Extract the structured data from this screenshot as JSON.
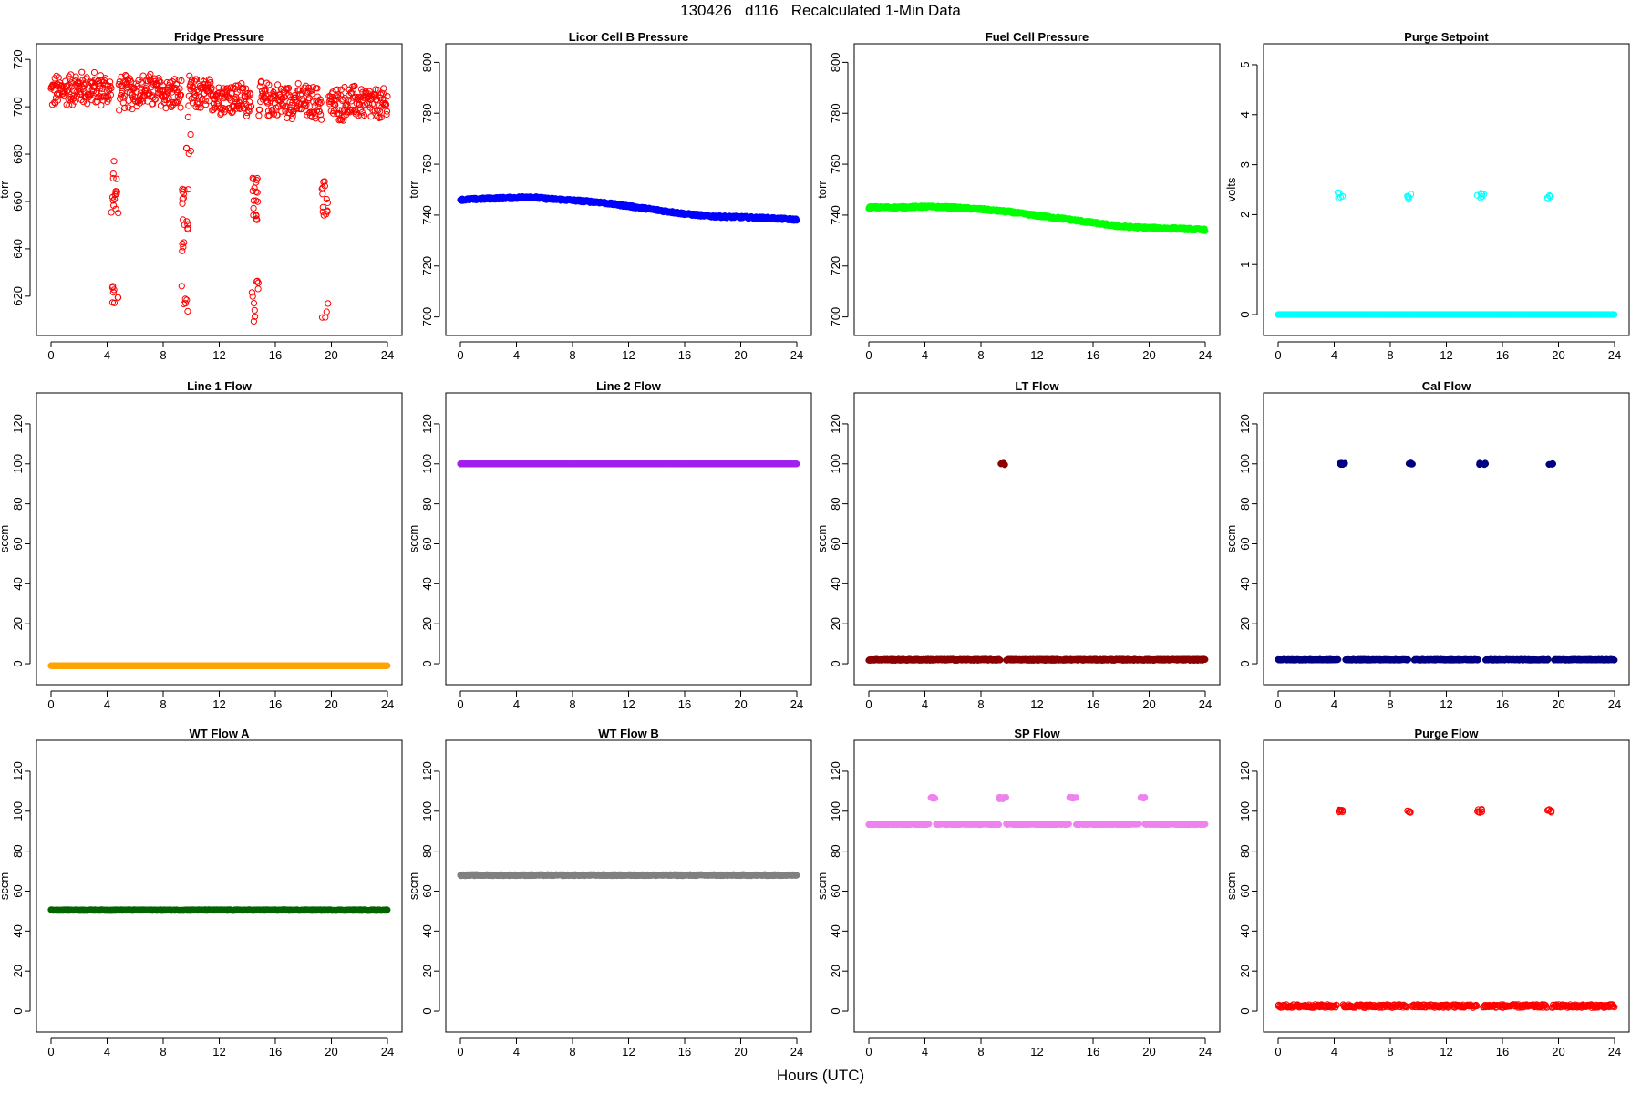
{
  "page": {
    "title": "130426   d116   Recalculated 1-Min Data",
    "xlabel": "Hours (UTC)"
  },
  "x_axis": {
    "range": [
      0,
      24
    ],
    "ticks": [
      0,
      4,
      8,
      12,
      16,
      20,
      24
    ]
  },
  "chart_data": [
    {
      "type": "scatter",
      "title": "Fridge Pressure",
      "ylabel": "torr",
      "ylim": [
        608,
        722
      ],
      "yticks": [
        620,
        640,
        660,
        680,
        700,
        720
      ],
      "marker": "open-circle",
      "color": "#ff0000",
      "base": [
        [
          0,
          706
        ],
        [
          2,
          708
        ],
        [
          4,
          707
        ],
        [
          5,
          706
        ],
        [
          7,
          707
        ],
        [
          9,
          705
        ],
        [
          11,
          705
        ],
        [
          14,
          703
        ],
        [
          16,
          703
        ],
        [
          18,
          702
        ],
        [
          20,
          701
        ],
        [
          22,
          702
        ],
        [
          24,
          700
        ]
      ],
      "noise": 7,
      "gaps": [
        [
          4.3,
          4.8
        ],
        [
          9.3,
          9.8
        ],
        [
          14.3,
          14.8
        ],
        [
          19.3,
          19.8
        ]
      ],
      "events": [
        {
          "x_start": 4.3,
          "x_end": 4.8,
          "y_min": 655,
          "y_max": 679,
          "count": 16
        },
        {
          "x_start": 4.3,
          "x_end": 4.8,
          "y_min": 616,
          "y_max": 626,
          "count": 8
        },
        {
          "x_start": 9.3,
          "x_end": 9.8,
          "y_min": 639,
          "y_max": 669,
          "count": 18
        },
        {
          "x_start": 9.3,
          "x_end": 9.8,
          "y_min": 613,
          "y_max": 628,
          "count": 6
        },
        {
          "x_start": 9.6,
          "x_end": 10.0,
          "y_min": 680,
          "y_max": 698,
          "count": 6
        },
        {
          "x_start": 14.3,
          "x_end": 14.8,
          "y_min": 652,
          "y_max": 670,
          "count": 18
        },
        {
          "x_start": 14.3,
          "x_end": 14.8,
          "y_min": 609,
          "y_max": 627,
          "count": 10
        },
        {
          "x_start": 19.3,
          "x_end": 19.8,
          "y_min": 654,
          "y_max": 669,
          "count": 14
        },
        {
          "x_start": 19.3,
          "x_end": 19.8,
          "y_min": 611,
          "y_max": 618,
          "count": 4
        }
      ]
    },
    {
      "type": "scatter",
      "title": "Licor Cell B Pressure",
      "ylabel": "torr",
      "ylim": [
        697,
        803
      ],
      "yticks": [
        700,
        720,
        740,
        760,
        780,
        800
      ],
      "marker": "filled-circle",
      "color": "#0000ff",
      "base": [
        [
          0,
          746
        ],
        [
          2,
          746.5
        ],
        [
          4,
          746.8
        ],
        [
          4.8,
          747.2
        ],
        [
          6,
          746.5
        ],
        [
          8,
          745.8
        ],
        [
          10,
          745
        ],
        [
          12,
          743.5
        ],
        [
          14,
          742
        ],
        [
          16,
          740.5
        ],
        [
          18,
          739.5
        ],
        [
          20,
          739.2
        ],
        [
          22,
          738.8
        ],
        [
          24,
          738.2
        ]
      ],
      "noise": 0.4,
      "gaps": [],
      "events": []
    },
    {
      "type": "scatter",
      "title": "Fuel Cell Pressure",
      "ylabel": "torr",
      "ylim": [
        697,
        803
      ],
      "yticks": [
        700,
        720,
        740,
        760,
        780,
        800
      ],
      "marker": "filled-circle",
      "color": "#00ff00",
      "base": [
        [
          0,
          743
        ],
        [
          2,
          743
        ],
        [
          4,
          743.3
        ],
        [
          6,
          743
        ],
        [
          8,
          742.3
        ],
        [
          10,
          741.3
        ],
        [
          12,
          739.8
        ],
        [
          14,
          738.5
        ],
        [
          16,
          737
        ],
        [
          18,
          735.5
        ],
        [
          20,
          735
        ],
        [
          22,
          734.7
        ],
        [
          24,
          734.2
        ]
      ],
      "noise": 0.4,
      "gaps": [],
      "events": []
    },
    {
      "type": "scatter",
      "title": "Purge Setpoint",
      "ylabel": "volts",
      "ylim": [
        -0.2,
        5.2
      ],
      "yticks": [
        0,
        1,
        2,
        3,
        4,
        5
      ],
      "marker": "open-circle",
      "color": "#00ffff",
      "base": [
        [
          0,
          0
        ],
        [
          24,
          0
        ]
      ],
      "noise": 0,
      "gaps": [],
      "baseline_style": "thick",
      "events": [
        {
          "x_start": 4.2,
          "x_end": 4.7,
          "y_min": 2.3,
          "y_max": 2.45,
          "count": 6
        },
        {
          "x_start": 9.2,
          "x_end": 9.5,
          "y_min": 2.3,
          "y_max": 2.42,
          "count": 5
        },
        {
          "x_start": 14.2,
          "x_end": 14.7,
          "y_min": 2.3,
          "y_max": 2.43,
          "count": 6
        },
        {
          "x_start": 19.2,
          "x_end": 19.5,
          "y_min": 2.3,
          "y_max": 2.42,
          "count": 5
        }
      ]
    },
    {
      "type": "scatter",
      "title": "Line 1 Flow",
      "ylabel": "sccm",
      "ylim": [
        -5,
        130
      ],
      "yticks": [
        0,
        20,
        40,
        60,
        80,
        100,
        120
      ],
      "marker": "filled-circle",
      "color": "#ffa500",
      "base": [
        [
          0,
          -1
        ],
        [
          24,
          -1
        ]
      ],
      "noise": 0,
      "gaps": [],
      "baseline_style": "thick",
      "events": []
    },
    {
      "type": "scatter",
      "title": "Line 2 Flow",
      "ylabel": "sccm",
      "ylim": [
        -5,
        130
      ],
      "yticks": [
        0,
        20,
        40,
        60,
        80,
        100,
        120
      ],
      "marker": "filled-circle",
      "color": "#a020f0",
      "base": [
        [
          0,
          100
        ],
        [
          24,
          100
        ]
      ],
      "noise": 0,
      "gaps": [],
      "baseline_style": "thick",
      "events": []
    },
    {
      "type": "scatter",
      "title": "LT Flow",
      "ylabel": "sccm",
      "ylim": [
        -5,
        130
      ],
      "yticks": [
        0,
        20,
        40,
        60,
        80,
        100,
        120
      ],
      "marker": "filled-circle",
      "color": "#8b0000",
      "base": [
        [
          0,
          2
        ],
        [
          24,
          2
        ]
      ],
      "noise": 0.3,
      "gaps": [
        [
          9.4,
          9.8
        ]
      ],
      "baseline_style": "thick",
      "events": [
        {
          "x_start": 9.4,
          "x_end": 9.8,
          "y_min": 99.5,
          "y_max": 100.5,
          "count": 6
        }
      ]
    },
    {
      "type": "scatter",
      "title": "Cal Flow",
      "ylabel": "sccm",
      "ylim": [
        -5,
        130
      ],
      "yticks": [
        0,
        20,
        40,
        60,
        80,
        100,
        120
      ],
      "marker": "filled-circle",
      "color": "#000080",
      "base": [
        [
          0,
          2
        ],
        [
          24,
          2
        ]
      ],
      "noise": 0.2,
      "gaps": [
        [
          4.3,
          4.8
        ],
        [
          9.3,
          9.7
        ],
        [
          14.3,
          14.8
        ],
        [
          19.3,
          19.7
        ]
      ],
      "baseline_style": "thick",
      "events": [
        {
          "x_start": 4.3,
          "x_end": 4.8,
          "y_min": 99.6,
          "y_max": 100.4,
          "count": 8
        },
        {
          "x_start": 9.3,
          "x_end": 9.7,
          "y_min": 99.6,
          "y_max": 100.4,
          "count": 6
        },
        {
          "x_start": 14.3,
          "x_end": 14.8,
          "y_min": 99.6,
          "y_max": 100.4,
          "count": 8
        },
        {
          "x_start": 19.3,
          "x_end": 19.7,
          "y_min": 99.6,
          "y_max": 100.4,
          "count": 6
        }
      ]
    },
    {
      "type": "scatter",
      "title": "WT Flow A",
      "ylabel": "sccm",
      "ylim": [
        -5,
        130
      ],
      "yticks": [
        0,
        20,
        40,
        60,
        80,
        100,
        120
      ],
      "marker": "filled-circle",
      "color": "#006400",
      "base": [
        [
          0,
          50.5
        ],
        [
          24,
          50.5
        ]
      ],
      "noise": 0.2,
      "gaps": [],
      "baseline_style": "thick",
      "events": []
    },
    {
      "type": "scatter",
      "title": "WT Flow B",
      "ylabel": "sccm",
      "ylim": [
        -5,
        130
      ],
      "yticks": [
        0,
        20,
        40,
        60,
        80,
        100,
        120
      ],
      "marker": "filled-circle",
      "color": "#808080",
      "base": [
        [
          0,
          68
        ],
        [
          24,
          68
        ]
      ],
      "noise": 0.3,
      "gaps": [],
      "baseline_style": "thick",
      "events": []
    },
    {
      "type": "scatter",
      "title": "SP Flow",
      "ylabel": "sccm",
      "ylim": [
        -5,
        130
      ],
      "yticks": [
        0,
        20,
        40,
        60,
        80,
        100,
        120
      ],
      "marker": "filled-circle",
      "color": "#ee82ee",
      "base": [
        [
          0,
          93.5
        ],
        [
          24,
          93.5
        ]
      ],
      "noise": 0.2,
      "gaps": [
        [
          4.3,
          4.8
        ],
        [
          9.3,
          9.8
        ],
        [
          14.3,
          14.8
        ],
        [
          19.3,
          19.7
        ]
      ],
      "baseline_style": "thick",
      "events": [
        {
          "x_start": 4.3,
          "x_end": 4.8,
          "y_min": 106.3,
          "y_max": 107,
          "count": 8
        },
        {
          "x_start": 9.3,
          "x_end": 9.8,
          "y_min": 106,
          "y_max": 107,
          "count": 8
        },
        {
          "x_start": 14.3,
          "x_end": 14.8,
          "y_min": 106.3,
          "y_max": 107,
          "count": 8
        },
        {
          "x_start": 19.3,
          "x_end": 19.7,
          "y_min": 106.3,
          "y_max": 107,
          "count": 6
        }
      ]
    },
    {
      "type": "scatter",
      "title": "Purge Flow",
      "ylabel": "sccm",
      "ylim": [
        -5,
        130
      ],
      "yticks": [
        0,
        20,
        40,
        60,
        80,
        100,
        120
      ],
      "marker": "open-circle",
      "color": "#ff0000",
      "base": [
        [
          0,
          2.5
        ],
        [
          24,
          2.5
        ]
      ],
      "noise": 0.8,
      "gaps": [
        [
          4.2,
          4.6
        ],
        [
          9.2,
          9.5
        ],
        [
          14.2,
          14.6
        ],
        [
          19.2,
          19.5
        ]
      ],
      "baseline_style": "thick",
      "events": [
        {
          "x_start": 4.2,
          "x_end": 4.6,
          "y_min": 99.2,
          "y_max": 101,
          "count": 8
        },
        {
          "x_start": 9.2,
          "x_end": 9.5,
          "y_min": 99,
          "y_max": 100.5,
          "count": 6
        },
        {
          "x_start": 14.2,
          "x_end": 14.6,
          "y_min": 99.2,
          "y_max": 101,
          "count": 8
        },
        {
          "x_start": 19.2,
          "x_end": 19.5,
          "y_min": 99.5,
          "y_max": 101,
          "count": 6
        }
      ]
    }
  ]
}
